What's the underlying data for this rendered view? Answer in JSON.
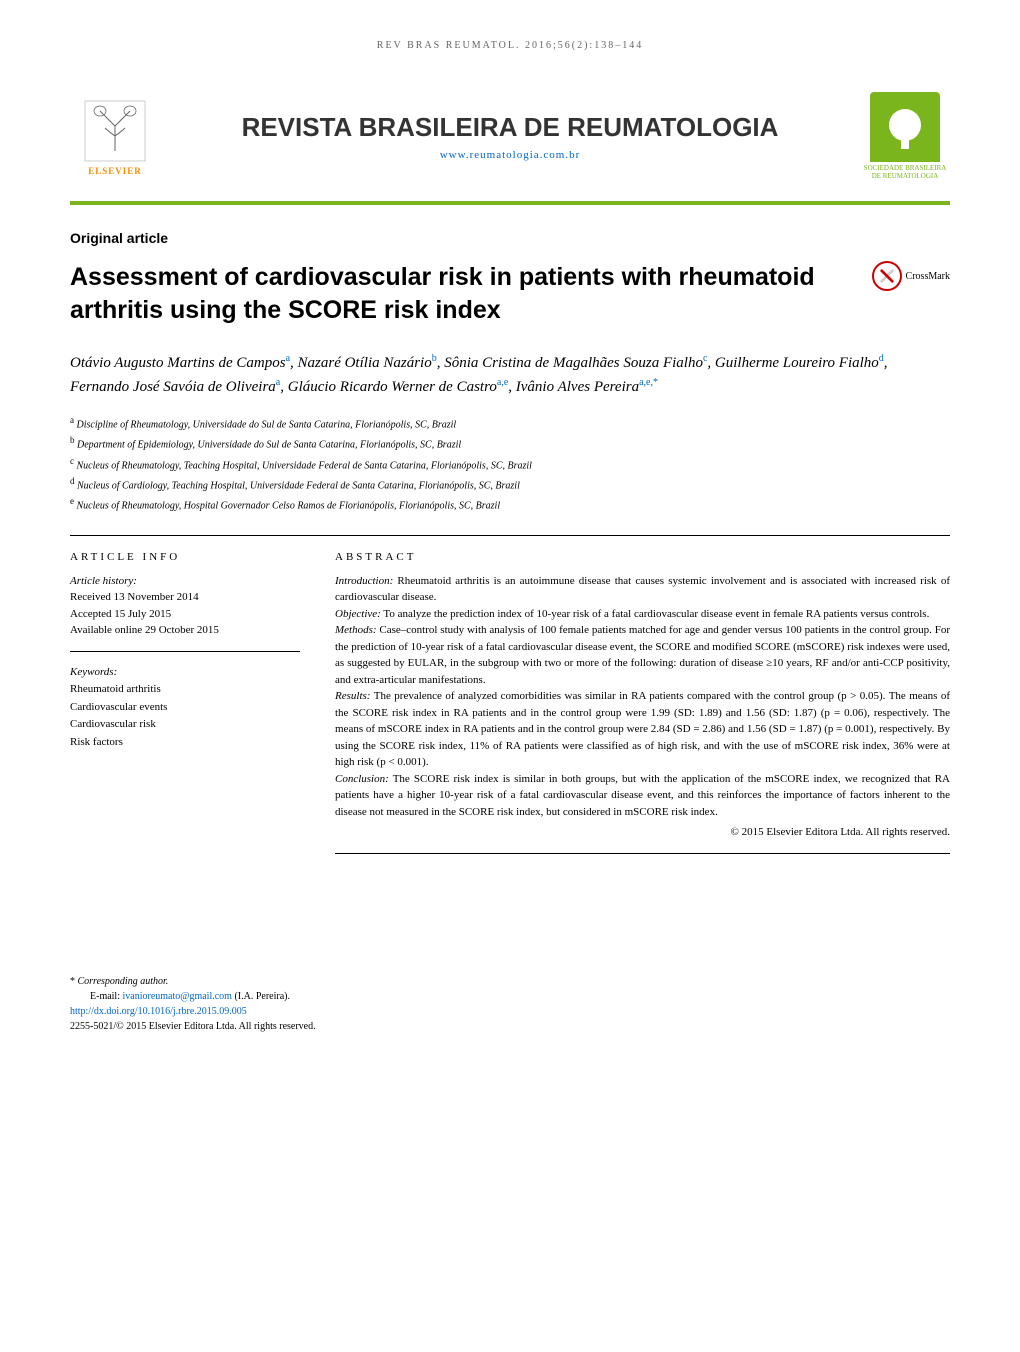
{
  "header": {
    "reference": "REV BRAS REUMATOL. 2016;56(2):138–144",
    "journal_title": "REVISTA BRASILEIRA DE REUMATOLOGIA",
    "journal_url": "www.reumatologia.com.br",
    "publisher_name": "ELSEVIER",
    "society_text": "SOCIEDADE BRASILEIRA DE REUMATOLOGIA"
  },
  "article": {
    "type": "Original article",
    "title": "Assessment of cardiovascular risk in patients with rheumatoid arthritis using the SCORE risk index",
    "crossmark_label": "CrossMark"
  },
  "authors_html": "Otávio Augusto Martins de Campos<sup>a</sup>, Nazaré Otília Nazário<sup>b</sup>, Sônia Cristina de Magalhães Souza Fialho<sup>c</sup>, Guilherme Loureiro Fialho<sup>d</sup>, Fernando José Savóia de Oliveira<sup>a</sup>, Gláucio Ricardo Werner de Castro<sup>a,e</sup>, Ivânio Alves Pereira<sup>a,e,*</sup>",
  "affiliations": [
    {
      "sup": "a",
      "text": "Discipline of Rheumatology, Universidade do Sul de Santa Catarina, Florianópolis, SC, Brazil"
    },
    {
      "sup": "b",
      "text": "Department of Epidemiology, Universidade do Sul de Santa Catarina, Florianópolis, SC, Brazil"
    },
    {
      "sup": "c",
      "text": "Nucleus of Rheumatology, Teaching Hospital, Universidade Federal de Santa Catarina, Florianópolis, SC, Brazil"
    },
    {
      "sup": "d",
      "text": "Nucleus of Cardiology, Teaching Hospital, Universidade Federal de Santa Catarina, Florianópolis, SC, Brazil"
    },
    {
      "sup": "e",
      "text": "Nucleus of Rheumatology, Hospital Governador Celso Ramos de Florianópolis, Florianópolis, SC, Brazil"
    }
  ],
  "info": {
    "heading": "ARTICLE INFO",
    "history_label": "Article history:",
    "received": "Received 13 November 2014",
    "accepted": "Accepted 15 July 2015",
    "online": "Available online 29 October 2015",
    "keywords_label": "Keywords:",
    "keywords": [
      "Rheumatoid arthritis",
      "Cardiovascular events",
      "Cardiovascular risk",
      "Risk factors"
    ]
  },
  "abstract": {
    "heading": "ABSTRACT",
    "sections": [
      {
        "label": "Introduction:",
        "text": " Rheumatoid arthritis is an autoimmune disease that causes systemic involvement and is associated with increased risk of cardiovascular disease."
      },
      {
        "label": "Objective:",
        "text": " To analyze the prediction index of 10-year risk of a fatal cardiovascular disease event in female RA patients versus controls."
      },
      {
        "label": "Methods:",
        "text": " Case–control study with analysis of 100 female patients matched for age and gender versus 100 patients in the control group. For the prediction of 10-year risk of a fatal cardiovascular disease event, the SCORE and modified SCORE (mSCORE) risk indexes were used, as suggested by EULAR, in the subgroup with two or more of the following: duration of disease ≥10 years, RF and/or anti-CCP positivity, and extra-articular manifestations."
      },
      {
        "label": "Results:",
        "text": " The prevalence of analyzed comorbidities was similar in RA patients compared with the control group (p > 0.05). The means of the SCORE risk index in RA patients and in the control group were 1.99 (SD: 1.89) and 1.56 (SD: 1.87) (p = 0.06), respectively. The means of mSCORE index in RA patients and in the control group were 2.84 (SD = 2.86) and 1.56 (SD = 1.87) (p = 0.001), respectively. By using the SCORE risk index, 11% of RA patients were classified as of high risk, and with the use of mSCORE risk index, 36% were at high risk (p < 0.001)."
      },
      {
        "label": "Conclusion:",
        "text": " The SCORE risk index is similar in both groups, but with the application of the mSCORE index, we recognized that RA patients have a higher 10-year risk of a fatal cardiovascular disease event, and this reinforces the importance of factors inherent to the disease not measured in the SCORE risk index, but considered in mSCORE risk index."
      }
    ],
    "copyright": "© 2015 Elsevier Editora Ltda. All rights reserved."
  },
  "footer": {
    "corresponding_marker": "*",
    "corresponding_label": "Corresponding author.",
    "email_label": "E-mail: ",
    "email": "ivanioreumato@gmail.com",
    "email_suffix": " (I.A. Pereira).",
    "doi": "http://dx.doi.org/10.1016/j.rbre.2015.09.005",
    "issn_line": "2255-5021/© 2015 Elsevier Editora Ltda. All rights reserved."
  },
  "style": {
    "accent_color": "#7ab51d",
    "link_color": "#0066cc",
    "text_color": "#000000",
    "background_color": "#ffffff",
    "title_fontsize": 25,
    "body_fontsize": 11
  }
}
